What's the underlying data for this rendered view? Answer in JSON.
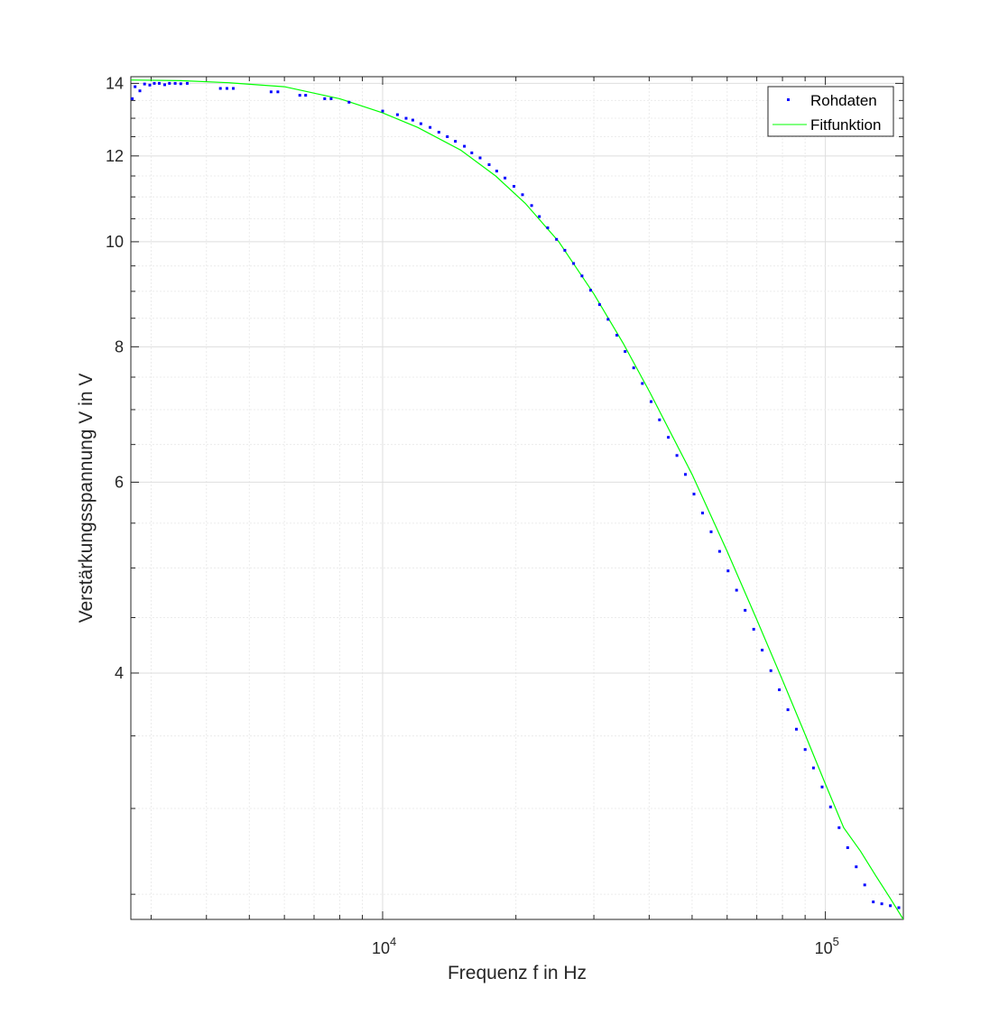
{
  "chart_data": {
    "type": "scatter",
    "title": "",
    "xlabel": "Frequenz f in Hz",
    "ylabel": "Verstärkungsspannung V in V",
    "xscale": "log",
    "yscale": "log",
    "xlim": [
      2700,
      150000
    ],
    "ylim": [
      2.37,
      14.2
    ],
    "x_ticks": [
      {
        "value": 10000,
        "base": "10",
        "exp": "4"
      },
      {
        "value": 100000,
        "base": "10",
        "exp": "5"
      }
    ],
    "y_ticks": [
      {
        "value": 4,
        "label": "4"
      },
      {
        "value": 6,
        "label": "6"
      },
      {
        "value": 8,
        "label": "8"
      },
      {
        "value": 10,
        "label": "10"
      },
      {
        "value": 12,
        "label": "12"
      },
      {
        "value": 14,
        "label": "14"
      }
    ],
    "grid": true,
    "legend": {
      "position": "top-right",
      "entries": [
        {
          "label": "Rohdaten",
          "color": "#0000ff",
          "marker": "point"
        },
        {
          "label": "Fitfunktion",
          "color": "#00ff00",
          "marker": "line"
        }
      ]
    },
    "series": [
      {
        "name": "Rohdaten",
        "color": "#0000ff",
        "kind": "points",
        "x": [
          2720,
          2760,
          2830,
          2900,
          2980,
          3050,
          3130,
          3220,
          3300,
          3400,
          3500,
          3620,
          4300,
          4450,
          4600,
          5600,
          5800,
          6500,
          6700,
          7400,
          7650,
          8400,
          10000,
          10800,
          11300,
          11700,
          12200,
          12800,
          13400,
          14000,
          14600,
          15300,
          15900,
          16600,
          17400,
          18100,
          18900,
          19800,
          20700,
          21700,
          22600,
          23600,
          24700,
          25800,
          27000,
          28200,
          29500,
          30900,
          32300,
          33800,
          35300,
          36900,
          38600,
          40400,
          42200,
          44200,
          46200,
          48300,
          50500,
          52800,
          55200,
          57700,
          60300,
          63000,
          65900,
          68900,
          72000,
          75300,
          78700,
          82300,
          86000,
          90000,
          94000,
          98300,
          102700,
          107400,
          112300,
          117400,
          122700,
          128300,
          134100,
          140200,
          146500
        ],
        "y": [
          13.55,
          13.9,
          13.78,
          13.98,
          13.95,
          14.0,
          14.0,
          13.96,
          14.0,
          14.0,
          13.99,
          14.0,
          13.85,
          13.85,
          13.85,
          13.75,
          13.75,
          13.65,
          13.65,
          13.55,
          13.55,
          13.45,
          13.2,
          13.1,
          13.0,
          12.95,
          12.85,
          12.75,
          12.62,
          12.5,
          12.38,
          12.25,
          12.08,
          11.95,
          11.78,
          11.62,
          11.45,
          11.25,
          11.05,
          10.8,
          10.55,
          10.3,
          10.05,
          9.82,
          9.55,
          9.3,
          9.02,
          8.75,
          8.48,
          8.2,
          7.92,
          7.65,
          7.4,
          7.12,
          6.85,
          6.6,
          6.35,
          6.1,
          5.85,
          5.62,
          5.4,
          5.18,
          4.97,
          4.77,
          4.57,
          4.39,
          4.2,
          4.02,
          3.86,
          3.7,
          3.55,
          3.4,
          3.27,
          3.14,
          3.01,
          2.88,
          2.76,
          2.65,
          2.55,
          2.46,
          2.45,
          2.44,
          2.43
        ]
      },
      {
        "name": "Fitfunktion",
        "color": "#00ff00",
        "kind": "line",
        "x": [
          2700,
          3500,
          4500,
          6000,
          8000,
          10000,
          12000,
          15000,
          18000,
          21000,
          25000,
          30000,
          35000,
          40000,
          50000,
          60000,
          70000,
          80000,
          90000,
          100000,
          110000,
          120000,
          130000,
          140000,
          150000
        ],
        "y": [
          14.1,
          14.08,
          14.02,
          13.9,
          13.55,
          13.15,
          12.75,
          12.15,
          11.5,
          10.85,
          10.0,
          8.95,
          8.05,
          7.28,
          6.1,
          5.18,
          4.48,
          3.94,
          3.51,
          3.16,
          2.88,
          2.74,
          2.6,
          2.48,
          2.37
        ]
      }
    ]
  }
}
